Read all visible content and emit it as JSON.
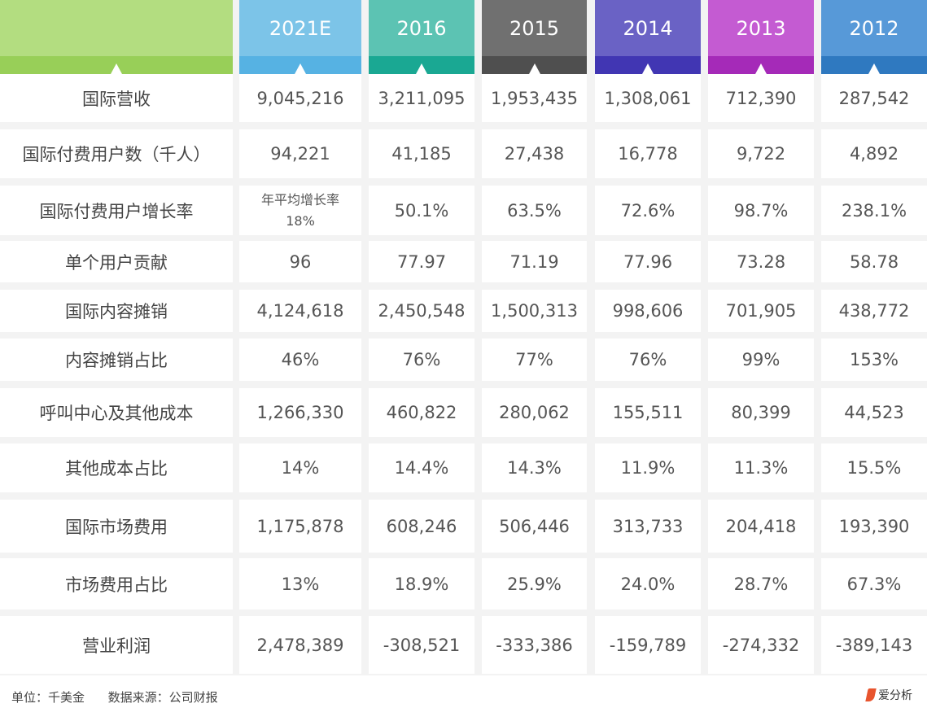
{
  "columns": [
    {
      "label": "2021E",
      "top_color": "#7cc4e8",
      "strip_color": "#56b2e3"
    },
    {
      "label": "2016",
      "top_color": "#5cc3b3",
      "strip_color": "#1aa893"
    },
    {
      "label": "2015",
      "top_color": "#707070",
      "strip_color": "#4f4f4f"
    },
    {
      "label": "2014",
      "top_color": "#6a62c5",
      "strip_color": "#4136b3"
    },
    {
      "label": "2013",
      "top_color": "#c45bd2",
      "strip_color": "#a52ab8"
    },
    {
      "label": "2012",
      "top_color": "#5799d8",
      "strip_color": "#2f79c0"
    }
  ],
  "header_left_color": {
    "top": "#b3dd80",
    "strip": "#98cf58"
  },
  "rows": [
    {
      "label": "国际营收",
      "values": [
        "9,045,216",
        "3,211,095",
        "1,953,435",
        "1,308,061",
        "712,390",
        "287,542"
      ]
    },
    {
      "label": "国际付费用户数（千人）",
      "values": [
        "94,221",
        "41,185",
        "27,438",
        "16,778",
        "9,722",
        "4,892"
      ]
    },
    {
      "label": "国际付费用户增长率",
      "values": [
        "年平均增长率\n18%",
        "50.1%",
        "63.5%",
        "72.6%",
        "98.7%",
        "238.1%"
      ]
    },
    {
      "label": "单个用户贡献",
      "values": [
        "96",
        "77.97",
        "71.19",
        "77.96",
        "73.28",
        "58.78"
      ]
    },
    {
      "label": "国际内容摊销",
      "values": [
        "4,124,618",
        "2,450,548",
        "1,500,313",
        "998,606",
        "701,905",
        "438,772"
      ]
    },
    {
      "label": "内容摊销占比",
      "values": [
        "46%",
        "76%",
        "77%",
        "76%",
        "99%",
        "153%"
      ]
    },
    {
      "label": "呼叫中心及其他成本",
      "values": [
        "1,266,330",
        "460,822",
        "280,062",
        "155,511",
        "80,399",
        "44,523"
      ]
    },
    {
      "label": "其他成本占比",
      "values": [
        "14%",
        "14.4%",
        "14.3%",
        "11.9%",
        "11.3%",
        "15.5%"
      ]
    },
    {
      "label": "国际市场费用",
      "values": [
        "1,175,878",
        "608,246",
        "506,446",
        "313,733",
        "204,418",
        "193,390"
      ]
    },
    {
      "label": "市场费用占比",
      "values": [
        "13%",
        "18.9%",
        "25.9%",
        "24.0%",
        "28.7%",
        "67.3%"
      ]
    },
    {
      "label": "营业利润",
      "values": [
        "2,478,389",
        "-308,521",
        "-333,386",
        "-159,789",
        "-274,332",
        "-389,143"
      ]
    }
  ],
  "footer": {
    "note": "单位：千美金      数据来源：公司财报",
    "logo": "爱分析"
  }
}
